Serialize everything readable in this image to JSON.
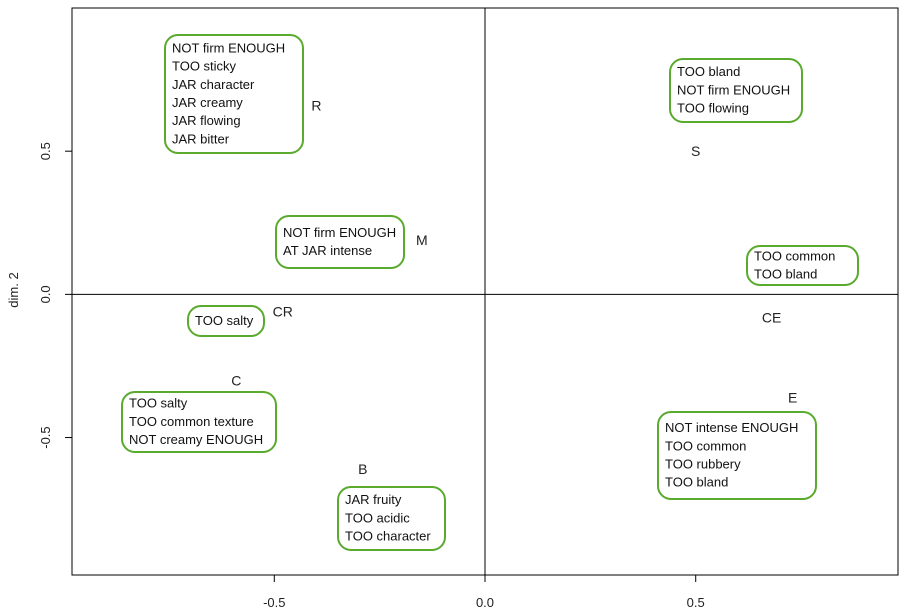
{
  "chart_data": {
    "type": "scatter",
    "title": "",
    "xlabel": "",
    "ylabel": "dim. 2",
    "xlim": [
      -0.98,
      0.98
    ],
    "ylim": [
      -0.98,
      1.0
    ],
    "xticks": [
      -0.5,
      0.0,
      0.5
    ],
    "yticks": [
      -0.5,
      0.0,
      0.5
    ],
    "xtick_labels": [
      "-0.5",
      "0.0",
      "0.5"
    ],
    "ytick_labels": [
      "-0.5",
      "0.0",
      "0.5"
    ],
    "reference_lines": {
      "x": 0.0,
      "y": 0.0
    },
    "grid": false,
    "box_color": "#5aaa2e",
    "points": [
      {
        "label": "R",
        "x": -0.4,
        "y": 0.66
      },
      {
        "label": "M",
        "x": -0.15,
        "y": 0.19
      },
      {
        "label": "CR",
        "x": -0.48,
        "y": -0.06
      },
      {
        "label": "C",
        "x": -0.59,
        "y": -0.3
      },
      {
        "label": "B",
        "x": -0.29,
        "y": -0.61
      },
      {
        "label": "S",
        "x": 0.5,
        "y": 0.5
      },
      {
        "label": "CE",
        "x": 0.68,
        "y": -0.08
      },
      {
        "label": "E",
        "x": 0.73,
        "y": -0.36
      }
    ],
    "annotations": [
      {
        "point": "R",
        "lines": [
          "NOT firm ENOUGH",
          "TOO sticky",
          "JAR character",
          "JAR creamy",
          "JAR flowing",
          "JAR bitter"
        ]
      },
      {
        "point": "M",
        "lines": [
          "NOT firm ENOUGH",
          "AT JAR intense"
        ]
      },
      {
        "point": "CR",
        "lines": [
          "TOO salty"
        ]
      },
      {
        "point": "C",
        "lines": [
          "TOO salty",
          "TOO common texture",
          "NOT creamy ENOUGH"
        ]
      },
      {
        "point": "B",
        "lines": [
          "JAR fruity",
          "TOO acidic",
          "TOO character"
        ]
      },
      {
        "point": "S",
        "lines": [
          "TOO bland",
          "NOT firm ENOUGH",
          "TOO flowing"
        ]
      },
      {
        "point": "CE",
        "lines": [
          "TOO common",
          "TOO bland"
        ]
      },
      {
        "point": "E",
        "lines": [
          "NOT intense ENOUGH",
          "TOO common",
          "TOO rubbery",
          "TOO bland"
        ]
      }
    ]
  }
}
